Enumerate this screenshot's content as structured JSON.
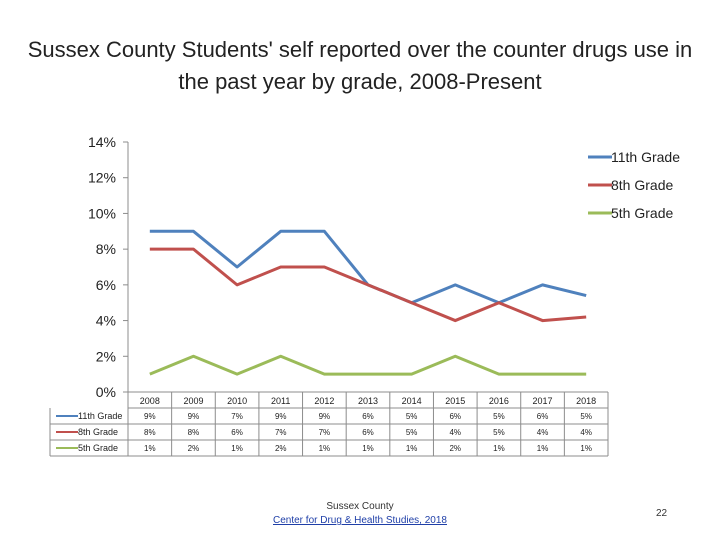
{
  "title": "Sussex County Students' self reported over the counter drugs use in the past year by grade, 2008-Present",
  "footer": {
    "line1": "Sussex County",
    "link": "Center for Drug & Health Studies, 2018"
  },
  "page_number": "22",
  "chart_data": {
    "type": "line",
    "categories": [
      "2008",
      "2009",
      "2010",
      "2011",
      "2012",
      "2013",
      "2014",
      "2015",
      "2016",
      "2017",
      "2018"
    ],
    "ylim": [
      0,
      14
    ],
    "yticks": [
      "0%",
      "2%",
      "4%",
      "6%",
      "8%",
      "10%",
      "12%",
      "14%"
    ],
    "grid": false,
    "legend": "right",
    "series": [
      {
        "name": "11th Grade",
        "color": "#4f81bd",
        "values": [
          9,
          9,
          7,
          9,
          9,
          6,
          5,
          6,
          5,
          6,
          5.4
        ],
        "labels": [
          "9%",
          "9%",
          "7%",
          "9%",
          "9%",
          "6%",
          "5%",
          "6%",
          "5%",
          "6%",
          "5%"
        ]
      },
      {
        "name": "8th Grade",
        "color": "#c0504d",
        "values": [
          8,
          8,
          6,
          7,
          7,
          6,
          5,
          4,
          5,
          4,
          4.2
        ],
        "labels": [
          "8%",
          "8%",
          "6%",
          "7%",
          "7%",
          "6%",
          "5%",
          "4%",
          "5%",
          "4%",
          "4%"
        ]
      },
      {
        "name": "5th Grade",
        "color": "#9bbb59",
        "values": [
          1,
          2,
          1,
          2,
          1,
          1,
          1,
          2,
          1,
          1,
          1
        ],
        "labels": [
          "1%",
          "2%",
          "1%",
          "2%",
          "1%",
          "1%",
          "1%",
          "2%",
          "1%",
          "1%",
          "1%"
        ]
      }
    ]
  }
}
